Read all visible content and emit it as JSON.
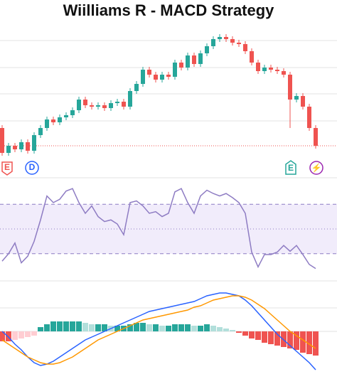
{
  "chart_data": [
    {
      "type": "candlestick",
      "title": "Wiilliams R - MACD Strategy",
      "open": [
        32.5,
        15,
        20,
        17.5,
        22.5,
        16.5,
        27.5,
        32.5,
        38.5,
        36.5,
        40,
        41.5,
        45,
        52.5,
        48.5,
        47.5,
        48.5,
        46.5,
        50,
        51,
        47.5,
        58.5,
        63.5,
        73.5,
        70,
        66.5,
        70,
        68.5,
        78.5,
        75,
        83.5,
        77.5,
        85,
        90,
        95,
        96.5,
        95,
        92.5,
        91.5,
        86.5,
        78.5,
        72.5,
        75,
        73.5,
        72.5,
        70,
        52.5,
        55,
        47.5,
        32.5
      ],
      "high": [
        34.5,
        22,
        22,
        24.5,
        24.5,
        29.5,
        34.5,
        40.5,
        40.5,
        42,
        43.5,
        47,
        54.5,
        54.5,
        50.5,
        50.5,
        50.5,
        52,
        53,
        53,
        60.5,
        65.5,
        75.5,
        75.5,
        72,
        72,
        72,
        80.5,
        80.5,
        85.5,
        85.5,
        87,
        92,
        97,
        98.5,
        98.5,
        97,
        94.5,
        93.5,
        88.5,
        80.5,
        77,
        77,
        75.5,
        74.5,
        72,
        57,
        57,
        49.5,
        34.5
      ],
      "low": [
        13,
        13,
        15.5,
        15.5,
        14.5,
        14.5,
        25.5,
        30.5,
        34.5,
        34.5,
        38,
        39.5,
        43,
        46.5,
        45.5,
        45.5,
        44.5,
        44.5,
        48,
        45.5,
        45.5,
        56.5,
        61.5,
        68,
        64.5,
        64.5,
        66.5,
        66.5,
        73,
        73,
        75.5,
        75.5,
        83,
        88,
        93,
        93,
        90.5,
        89.5,
        84.5,
        76.5,
        70.5,
        70.5,
        71.5,
        70.5,
        68,
        32.5,
        50.5,
        45.5,
        30.5,
        18
      ],
      "close": [
        15,
        20,
        17.5,
        22.5,
        16.5,
        27.5,
        32.5,
        38.5,
        36.5,
        40,
        41.5,
        45,
        52.5,
        48.5,
        47.5,
        48.5,
        46.5,
        50,
        51,
        47.5,
        58.5,
        63.5,
        73.5,
        70,
        66.5,
        70,
        68.5,
        78.5,
        75,
        83.5,
        77.5,
        85,
        90,
        95,
        96.5,
        95,
        92.5,
        91.5,
        86.5,
        78.5,
        72.5,
        75,
        73.5,
        72.5,
        70,
        52.5,
        55,
        47.5,
        32.5,
        20
      ],
      "up_color": "#26a69a",
      "down_color": "#ef5350",
      "ylim": [
        0,
        100
      ],
      "markers": [
        "E",
        "D",
        "E",
        "⚡"
      ]
    },
    {
      "type": "line",
      "color": "#8e7cc3",
      "ylim": [
        -100,
        0
      ],
      "levels": [
        -20,
        -50,
        -80
      ],
      "values": [
        -89,
        -80,
        -67,
        -91,
        -83,
        -65,
        -39,
        -10,
        -18,
        -14,
        -4,
        -1,
        -18,
        -31,
        -22,
        -35,
        -41,
        -39,
        -44,
        -57,
        -18,
        -16,
        -22,
        -31,
        -29,
        -35,
        -31,
        -5,
        -1,
        -18,
        -31,
        -10,
        -3,
        -7,
        -10,
        -7,
        -12,
        -18,
        -31,
        -78,
        -96,
        -81,
        -81,
        -78,
        -70,
        -77,
        -70,
        -81,
        -93,
        -98
      ]
    },
    {
      "type": "macd",
      "ylim": [
        -3.5,
        3.3
      ],
      "histogram": [
        -0.7,
        -0.7,
        -0.6,
        -0.5,
        -0.4,
        -0.3,
        0.3,
        0.5,
        0.7,
        0.7,
        0.7,
        0.7,
        0.7,
        0.6,
        0.5,
        0.5,
        0.5,
        0.4,
        0.4,
        0.4,
        0.5,
        0.6,
        0.6,
        0.5,
        0.5,
        0.4,
        0.4,
        0.5,
        0.5,
        0.5,
        0.4,
        0.4,
        0.5,
        0.4,
        0.3,
        0.2,
        0.1,
        -0.1,
        -0.3,
        -0.5,
        -0.6,
        -0.8,
        -0.9,
        -1.0,
        -1.1,
        -1.2,
        -1.3,
        -1.5,
        -1.6,
        -1.7
      ],
      "hist_colors": [
        "#26a69a",
        "#b2dfdb",
        "#ef5350",
        "#ffcdd2"
      ],
      "series": [
        {
          "color": "#2962ff",
          "values": [
            0,
            -0.4,
            -0.9,
            -1.3,
            -1.8,
            -2.2,
            -2.4,
            -2.3,
            -2.1,
            -1.8,
            -1.5,
            -1.2,
            -0.9,
            -0.6,
            -0.4,
            -0.2,
            0,
            0.2,
            0.4,
            0.6,
            0.8,
            1.0,
            1.2,
            1.4,
            1.5,
            1.6,
            1.7,
            1.8,
            1.9,
            2.0,
            2.1,
            2.3,
            2.5,
            2.6,
            2.7,
            2.7,
            2.6,
            2.5,
            2.2,
            1.8,
            1.3,
            0.8,
            0.3,
            -0.2,
            -0.6,
            -1.0,
            -1.4,
            -1.8,
            -2.2,
            -2.7
          ]
        },
        {
          "color": "#ff9800",
          "values": [
            -0.6,
            -0.9,
            -1.2,
            -1.5,
            -1.8,
            -2.0,
            -2.2,
            -2.3,
            -2.3,
            -2.2,
            -2.0,
            -1.8,
            -1.5,
            -1.2,
            -0.9,
            -0.6,
            -0.4,
            -0.2,
            0,
            0.2,
            0.4,
            0.6,
            0.8,
            0.9,
            1.0,
            1.1,
            1.2,
            1.3,
            1.4,
            1.5,
            1.7,
            1.8,
            2.0,
            2.2,
            2.3,
            2.4,
            2.5,
            2.5,
            2.4,
            2.2,
            1.9,
            1.6,
            1.2,
            0.8,
            0.4,
            0,
            -0.3,
            -0.6,
            -0.9,
            -1.2
          ]
        }
      ]
    }
  ]
}
